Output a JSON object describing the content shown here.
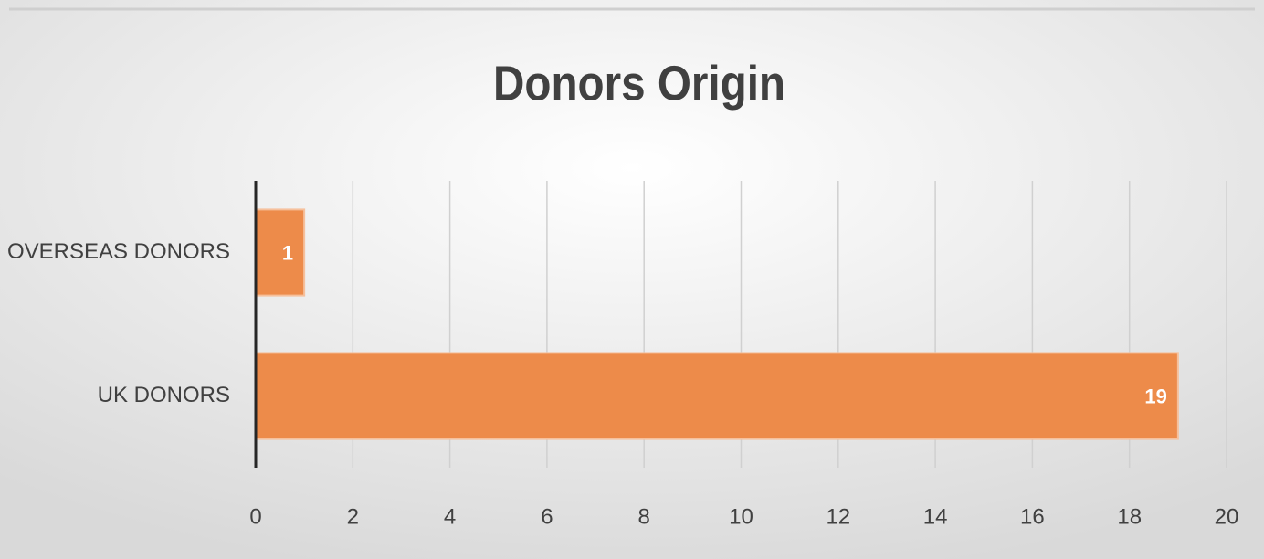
{
  "chart_data": {
    "type": "hbar",
    "title": "Donors Origin",
    "categories": [
      "OVERSEAS DONORS",
      "UK DONORS"
    ],
    "values": [
      1,
      19
    ],
    "color": "#ed8b4a",
    "xlim": [
      0,
      20
    ],
    "xticks": [
      0,
      2,
      4,
      6,
      8,
      10,
      12,
      14,
      16,
      18,
      20
    ],
    "grid": true
  }
}
